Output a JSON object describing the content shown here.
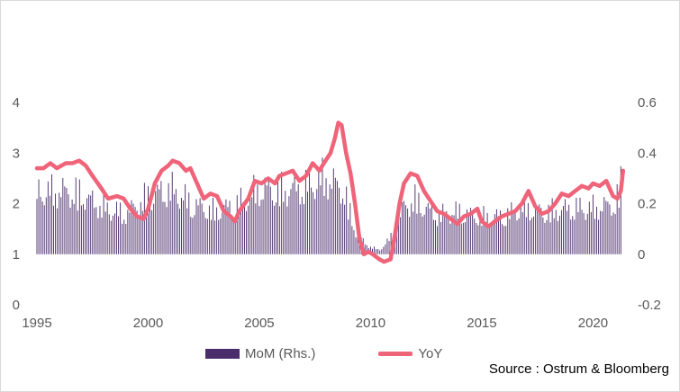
{
  "chart_data": {
    "type": "bar+line",
    "title": "",
    "source": "Source : Ostrum & Bloomberg",
    "x_ticks": [
      "1995",
      "2000",
      "2005",
      "2010",
      "2015",
      "2020"
    ],
    "xlim": [
      1995,
      2021.4
    ],
    "y_left": {
      "ticks": [
        "0",
        "1",
        "2",
        "3",
        "4"
      ],
      "lim": [
        0,
        4
      ]
    },
    "y_right": {
      "ticks": [
        "-0.2",
        "0",
        "0.2",
        "0.4",
        "0.6"
      ],
      "lim": [
        -0.2,
        0.6
      ]
    },
    "series": [
      {
        "name": "MoM (Rhs.)",
        "kind": "bar",
        "axis": "right",
        "color": "#4b2d6b",
        "frequency": "monthly",
        "start": 1995.0,
        "envelope": [
          [
            1995.0,
            0.32
          ],
          [
            1996.0,
            0.33
          ],
          [
            1997.0,
            0.31
          ],
          [
            1998.0,
            0.24
          ],
          [
            1999.0,
            0.21
          ],
          [
            2000.0,
            0.3
          ],
          [
            2001.0,
            0.34
          ],
          [
            2002.0,
            0.26
          ],
          [
            2003.0,
            0.22
          ],
          [
            2004.0,
            0.26
          ],
          [
            2005.0,
            0.34
          ],
          [
            2006.0,
            0.33
          ],
          [
            2007.0,
            0.35
          ],
          [
            2008.0,
            0.4
          ],
          [
            2008.8,
            0.33
          ],
          [
            2009.3,
            0.12
          ],
          [
            2009.8,
            0.05
          ],
          [
            2010.4,
            0.02
          ],
          [
            2011.0,
            0.1
          ],
          [
            2011.5,
            0.25
          ],
          [
            2012.0,
            0.28
          ],
          [
            2013.0,
            0.2
          ],
          [
            2014.0,
            0.22
          ],
          [
            2015.0,
            0.19
          ],
          [
            2016.0,
            0.2
          ],
          [
            2017.0,
            0.24
          ],
          [
            2018.0,
            0.22
          ],
          [
            2019.0,
            0.24
          ],
          [
            2020.0,
            0.24
          ],
          [
            2021.0,
            0.26
          ],
          [
            2021.3,
            0.38
          ]
        ]
      },
      {
        "name": "YoY",
        "kind": "line",
        "axis": "left",
        "color": "#f0647a",
        "points": [
          [
            1995.0,
            2.7
          ],
          [
            1995.3,
            2.7
          ],
          [
            1995.6,
            2.8
          ],
          [
            1995.9,
            2.7
          ],
          [
            1996.3,
            2.8
          ],
          [
            1996.6,
            2.8
          ],
          [
            1996.9,
            2.85
          ],
          [
            1997.2,
            2.75
          ],
          [
            1997.5,
            2.55
          ],
          [
            1997.9,
            2.3
          ],
          [
            1998.2,
            2.1
          ],
          [
            1998.6,
            2.15
          ],
          [
            1998.9,
            2.1
          ],
          [
            1999.2,
            1.9
          ],
          [
            1999.5,
            1.75
          ],
          [
            1999.8,
            1.7
          ],
          [
            2000.0,
            1.9
          ],
          [
            2000.3,
            2.4
          ],
          [
            2000.6,
            2.65
          ],
          [
            2000.9,
            2.75
          ],
          [
            2001.1,
            2.85
          ],
          [
            2001.4,
            2.8
          ],
          [
            2001.7,
            2.65
          ],
          [
            2001.9,
            2.7
          ],
          [
            2002.2,
            2.4
          ],
          [
            2002.5,
            2.1
          ],
          [
            2002.8,
            2.2
          ],
          [
            2003.1,
            2.15
          ],
          [
            2003.4,
            1.85
          ],
          [
            2003.7,
            1.75
          ],
          [
            2003.9,
            1.65
          ],
          [
            2004.1,
            1.85
          ],
          [
            2004.5,
            2.1
          ],
          [
            2004.8,
            2.45
          ],
          [
            2005.1,
            2.4
          ],
          [
            2005.4,
            2.5
          ],
          [
            2005.7,
            2.4
          ],
          [
            2005.9,
            2.55
          ],
          [
            2006.2,
            2.6
          ],
          [
            2006.5,
            2.65
          ],
          [
            2006.8,
            2.45
          ],
          [
            2007.1,
            2.55
          ],
          [
            2007.4,
            2.8
          ],
          [
            2007.7,
            2.65
          ],
          [
            2007.9,
            2.8
          ],
          [
            2008.2,
            3.0
          ],
          [
            2008.4,
            3.3
          ],
          [
            2008.55,
            3.6
          ],
          [
            2008.7,
            3.55
          ],
          [
            2008.9,
            3.0
          ],
          [
            2009.1,
            2.6
          ],
          [
            2009.3,
            2.0
          ],
          [
            2009.5,
            1.3
          ],
          [
            2009.7,
            1.0
          ],
          [
            2009.9,
            1.05
          ],
          [
            2010.1,
            1.0
          ],
          [
            2010.4,
            0.9
          ],
          [
            2010.6,
            0.85
          ],
          [
            2010.9,
            0.9
          ],
          [
            2011.1,
            1.4
          ],
          [
            2011.3,
            2.0
          ],
          [
            2011.5,
            2.4
          ],
          [
            2011.8,
            2.6
          ],
          [
            2012.1,
            2.55
          ],
          [
            2012.4,
            2.25
          ],
          [
            2012.7,
            2.05
          ],
          [
            2013.0,
            1.85
          ],
          [
            2013.3,
            1.8
          ],
          [
            2013.6,
            1.7
          ],
          [
            2013.9,
            1.6
          ],
          [
            2014.2,
            1.75
          ],
          [
            2014.5,
            1.8
          ],
          [
            2014.8,
            1.9
          ],
          [
            2015.0,
            1.65
          ],
          [
            2015.3,
            1.55
          ],
          [
            2015.6,
            1.65
          ],
          [
            2015.9,
            1.75
          ],
          [
            2016.2,
            1.8
          ],
          [
            2016.5,
            1.85
          ],
          [
            2016.8,
            2.0
          ],
          [
            2017.1,
            2.25
          ],
          [
            2017.4,
            1.95
          ],
          [
            2017.7,
            1.8
          ],
          [
            2018.0,
            1.85
          ],
          [
            2018.3,
            2.0
          ],
          [
            2018.6,
            2.2
          ],
          [
            2018.9,
            2.15
          ],
          [
            2019.2,
            2.25
          ],
          [
            2019.5,
            2.35
          ],
          [
            2019.8,
            2.3
          ],
          [
            2020.0,
            2.4
          ],
          [
            2020.3,
            2.35
          ],
          [
            2020.6,
            2.45
          ],
          [
            2020.9,
            2.15
          ],
          [
            2021.1,
            2.1
          ],
          [
            2021.25,
            2.25
          ],
          [
            2021.35,
            2.65
          ]
        ]
      }
    ],
    "legend": {
      "placement": "bottom"
    },
    "grid": false
  }
}
